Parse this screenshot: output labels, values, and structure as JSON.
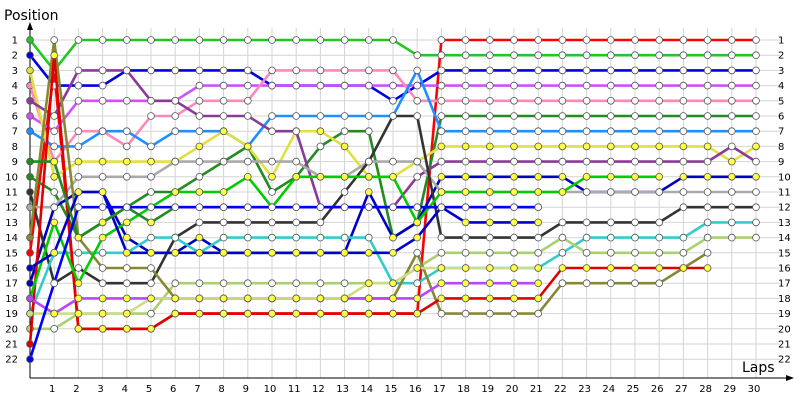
{
  "chart_data": {
    "type": "line",
    "ylabel": "Position",
    "xlabel": "Laps",
    "x": [
      1,
      2,
      3,
      4,
      5,
      6,
      7,
      8,
      9,
      10,
      11,
      12,
      13,
      14,
      15,
      16,
      17,
      18,
      19,
      20,
      21,
      22,
      23,
      24,
      25,
      26,
      27,
      28,
      29,
      30
    ],
    "y_ticks": [
      1,
      2,
      3,
      4,
      5,
      6,
      7,
      8,
      9,
      10,
      11,
      12,
      13,
      14,
      15,
      16,
      17,
      18,
      19,
      20,
      21,
      22
    ],
    "xlim": [
      0,
      30
    ],
    "ylim": [
      1,
      22
    ],
    "y_inverted": true,
    "grid": true,
    "series": [
      {
        "color": "#ff0000",
        "marker": "#ffffff",
        "start": 15,
        "values": [
          3,
          20,
          20,
          20,
          20,
          19,
          19,
          19,
          19,
          19,
          19,
          19,
          19,
          19,
          19,
          19,
          1,
          1,
          1,
          1,
          1,
          1,
          1,
          1,
          1,
          1,
          1,
          1,
          1,
          1
        ],
        "end_label": 1
      },
      {
        "color": "#22c822",
        "marker": "#ffffff",
        "start": 1,
        "values": [
          3,
          1,
          1,
          1,
          1,
          1,
          1,
          1,
          1,
          1,
          1,
          1,
          1,
          1,
          1,
          2,
          2,
          2,
          2,
          2,
          2,
          2,
          2,
          2,
          2,
          2,
          2,
          2,
          2,
          2
        ],
        "end_label": 2
      },
      {
        "color": "#0000e0",
        "marker": "#ffffff",
        "start": 2,
        "values": [
          4,
          4,
          4,
          3,
          3,
          3,
          3,
          3,
          3,
          4,
          4,
          4,
          4,
          4,
          5,
          4,
          3,
          3,
          3,
          3,
          3,
          3,
          3,
          3,
          3,
          3,
          3,
          3,
          3,
          3
        ],
        "end_label": 3
      },
      {
        "color": "#d050ff",
        "marker": "#ffffff",
        "start": 6,
        "values": [
          7,
          5,
          5,
          5,
          5,
          5,
          4,
          4,
          4,
          4,
          4,
          4,
          4,
          4,
          4,
          4,
          4,
          4,
          4,
          4,
          4,
          4,
          4,
          4,
          4,
          4,
          4,
          4,
          4,
          4
        ],
        "end_label": 4
      },
      {
        "color": "#ff88bb",
        "marker": "#ffffff",
        "start": 4,
        "values": [
          9,
          7,
          7,
          8,
          6,
          6,
          5,
          5,
          5,
          3,
          3,
          3,
          3,
          3,
          3,
          5,
          5,
          5,
          5,
          5,
          5,
          5,
          5,
          5,
          5,
          5,
          5,
          5,
          5,
          5
        ],
        "end_label": 5
      },
      {
        "color": "#228b22",
        "marker": "#ffffff",
        "start": 10,
        "values": [
          11,
          14,
          13,
          12,
          11,
          11,
          10,
          9,
          8,
          11,
          10,
          8,
          7,
          7,
          14,
          13,
          6,
          6,
          6,
          6,
          6,
          6,
          6,
          6,
          6,
          6,
          6,
          6,
          6,
          6
        ],
        "end_label": 6
      },
      {
        "color": "#1e90ff",
        "marker": "#ffffff",
        "start": 7,
        "values": [
          8,
          8,
          7,
          7,
          8,
          7,
          7,
          7,
          8,
          6,
          6,
          6,
          6,
          6,
          6,
          3,
          7,
          7,
          7,
          7,
          7,
          7,
          7,
          7,
          7,
          7,
          7,
          7,
          7,
          7
        ],
        "end_label": 7
      },
      {
        "color": "#e0e040",
        "marker": "#ffff44",
        "start": 3,
        "values": [
          10,
          9,
          9,
          9,
          9,
          9,
          8,
          7,
          8,
          10,
          7,
          7,
          8,
          10,
          10,
          9,
          8,
          8,
          8,
          8,
          8,
          8,
          8,
          8,
          8,
          8,
          8,
          8,
          9,
          8
        ],
        "end_label": 8
      },
      {
        "color": "#8b3a9a",
        "marker": "#ffffff",
        "start": 5,
        "values": [
          6,
          3,
          3,
          3,
          5,
          5,
          6,
          6,
          6,
          7,
          7,
          12,
          12,
          12,
          12,
          10,
          9,
          9,
          9,
          9,
          9,
          9,
          9,
          9,
          9,
          9,
          9,
          9,
          8,
          9
        ],
        "end_label": 9
      },
      {
        "color": "#0000c0",
        "marker": "#ffff44",
        "start": 17,
        "values": [
          12,
          11,
          11,
          14,
          15,
          15,
          14,
          15,
          15,
          15,
          15,
          15,
          15,
          11,
          14,
          13,
          10,
          10,
          10,
          10,
          10,
          10,
          11,
          11,
          11,
          11,
          10,
          10,
          10,
          10
        ],
        "end_label": 10
      },
      {
        "color": "#aaaaaa",
        "marker": "#ffffff",
        "start": 12,
        "values": [
          12,
          10,
          10,
          10,
          10,
          9,
          9,
          9,
          9,
          9,
          9,
          10,
          10,
          9,
          9,
          9,
          11,
          11,
          11,
          11,
          11,
          11,
          11,
          11,
          11,
          11,
          11,
          11,
          11,
          11
        ],
        "end_label": 11
      },
      {
        "color": "#333333",
        "marker": "#ffffff",
        "start": 11,
        "values": [
          17,
          16,
          17,
          17,
          17,
          14,
          13,
          13,
          13,
          13,
          13,
          13,
          11,
          9,
          6,
          6,
          14,
          14,
          14,
          14,
          14,
          13,
          13,
          13,
          13,
          13,
          12,
          12,
          12,
          12
        ],
        "end_label": 12
      },
      {
        "color": "#33cccc",
        "marker": "#ffffff",
        "start": 19,
        "values": [
          15,
          15,
          15,
          15,
          14,
          14,
          15,
          14,
          14,
          14,
          14,
          14,
          14,
          14,
          17,
          17,
          16,
          16,
          16,
          16,
          16,
          15,
          14,
          14,
          14,
          14,
          14,
          13,
          13,
          13
        ],
        "end_label": 13
      },
      {
        "color": "#aad070",
        "marker": "#ffffff",
        "start": 20,
        "values": [
          20,
          19,
          19,
          19,
          19,
          17,
          17,
          17,
          17,
          17,
          17,
          17,
          17,
          17,
          17,
          16,
          15,
          15,
          15,
          15,
          15,
          14,
          15,
          15,
          15,
          15,
          15,
          14,
          14,
          14
        ],
        "end_label": 14
      },
      {
        "color": "#888833",
        "marker": "#ffffff",
        "start": 14,
        "values": [
          1,
          14,
          16,
          16,
          16,
          18,
          18,
          18,
          18,
          18,
          18,
          18,
          18,
          18,
          18,
          15,
          19,
          19,
          19,
          19,
          19,
          17,
          17,
          17,
          17,
          17,
          16,
          15,
          null,
          null
        ],
        "end_label": 15
      },
      {
        "color": "#e00000",
        "marker": "#ffff44",
        "start": 21,
        "values": [
          2,
          20,
          20,
          20,
          20,
          19,
          19,
          19,
          19,
          19,
          19,
          19,
          19,
          19,
          19,
          19,
          18,
          18,
          18,
          18,
          18,
          16,
          16,
          16,
          16,
          16,
          16,
          16,
          null,
          null
        ],
        "end_label": 16
      },
      {
        "color": "#00cc00",
        "marker": "#ffff44",
        "start": 18,
        "values": [
          13,
          17,
          14,
          13,
          12,
          11,
          11,
          11,
          10,
          12,
          10,
          10,
          10,
          10,
          10,
          13,
          11,
          11,
          11,
          11,
          11,
          11,
          10,
          10,
          10,
          10,
          null,
          null,
          null,
          null
        ],
        "end_label": 17
      },
      {
        "color": "#bb44ff",
        "marker": "#ffff44",
        "start": 18,
        "values": [
          19,
          18,
          18,
          18,
          18,
          18,
          18,
          18,
          18,
          18,
          18,
          18,
          18,
          18,
          18,
          18,
          17,
          17,
          17,
          17,
          17,
          null,
          null,
          null,
          null,
          null,
          null,
          null,
          null,
          null
        ],
        "end_label": 18
      },
      {
        "color": "#ccdd88",
        "marker": "#ffff44",
        "start": 19,
        "values": [
          19,
          19,
          19,
          19,
          18,
          18,
          18,
          18,
          18,
          18,
          18,
          18,
          18,
          17,
          17,
          16,
          16,
          16,
          16,
          16,
          16,
          null,
          null,
          null,
          null,
          null,
          null,
          null,
          null,
          null
        ],
        "end_label": 19
      },
      {
        "color": "#0000cc",
        "marker": "#ffff44",
        "start": 16,
        "values": [
          15,
          11,
          11,
          15,
          15,
          15,
          15,
          15,
          15,
          15,
          15,
          15,
          15,
          15,
          15,
          14,
          12,
          13,
          13,
          13,
          13,
          null,
          null,
          null,
          null,
          null,
          null,
          null,
          null,
          null
        ],
        "end_label": 20
      },
      {
        "color": "#228b22",
        "marker": "#ffff44",
        "start": 9,
        "values": [
          9,
          14,
          13,
          12,
          13,
          12,
          12,
          12,
          12,
          12,
          12,
          12,
          12,
          12,
          12,
          12,
          12,
          12,
          12,
          12,
          12,
          null,
          null,
          null,
          null,
          null,
          null,
          null,
          null,
          null
        ],
        "end_label": 21
      },
      {
        "color": "#0000ff",
        "marker": "#ffffff",
        "start": 22,
        "values": [
          17,
          12,
          12,
          12,
          12,
          12,
          12,
          12,
          12,
          12,
          12,
          12,
          12,
          12,
          12,
          12,
          12,
          12,
          12,
          12,
          12,
          null,
          null,
          null,
          null,
          null,
          null,
          null,
          null,
          null
        ],
        "end_label": 22
      }
    ]
  }
}
